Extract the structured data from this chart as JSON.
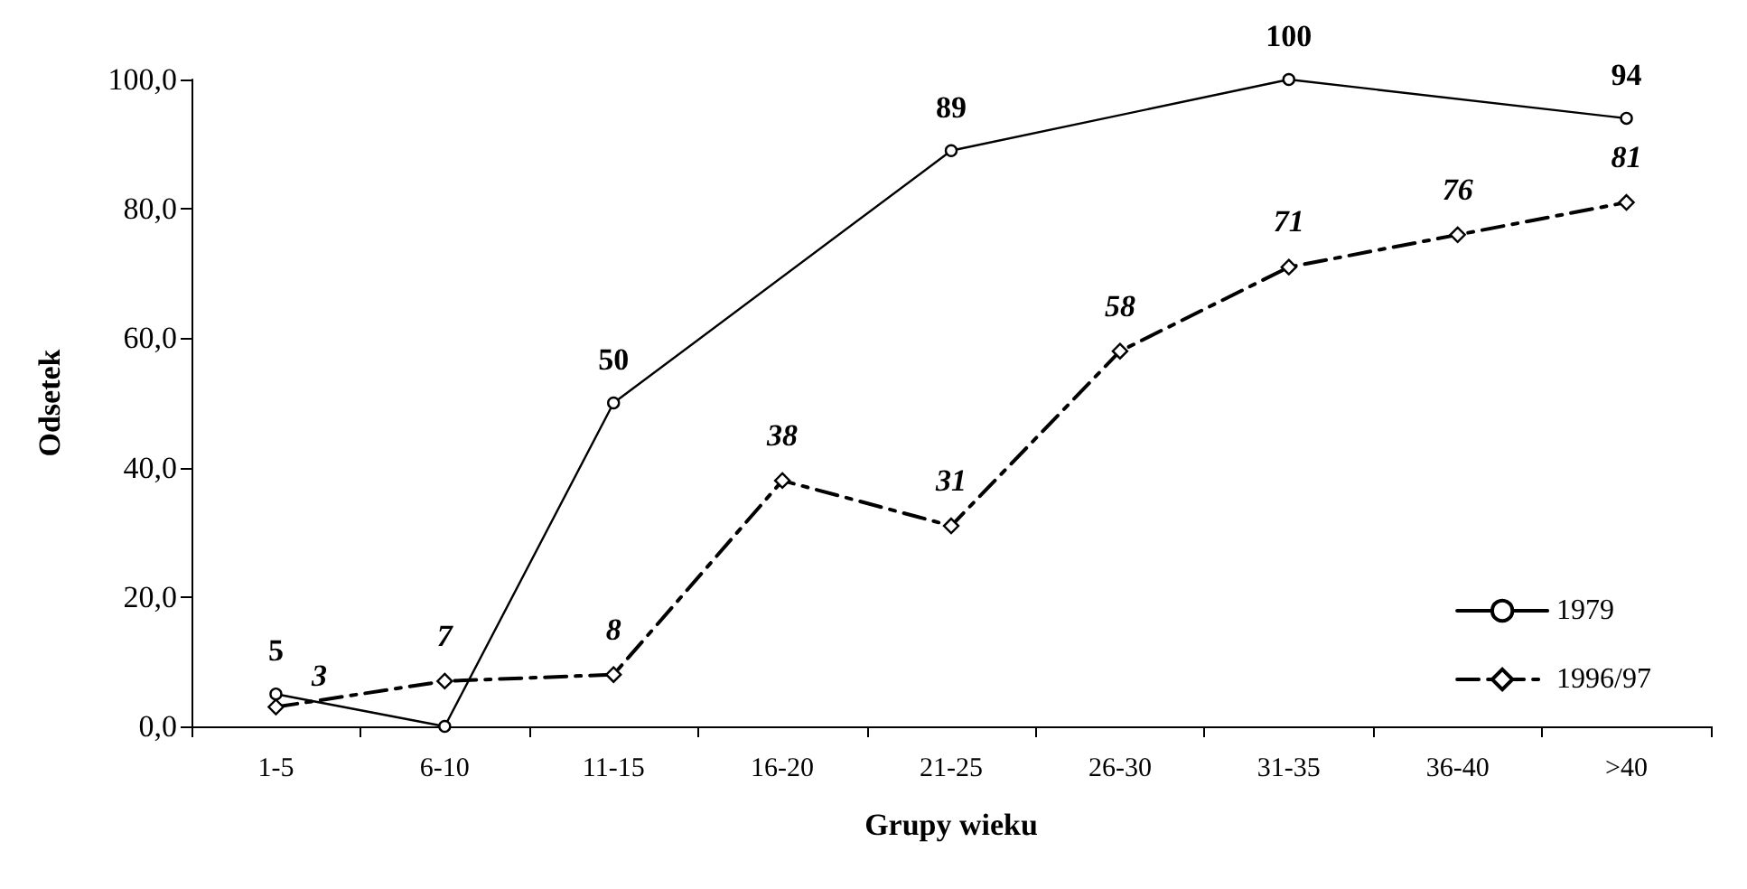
{
  "chart_data": {
    "type": "line",
    "xlabel": "Grupy wieku",
    "ylabel": "Odsetek",
    "categories": [
      "1-5",
      "6-10",
      "11-15",
      "16-20",
      "21-25",
      "26-30",
      "31-35",
      "36-40",
      ">40"
    ],
    "series": [
      {
        "name": "1979",
        "color": "#000000",
        "marker": "circle",
        "line_style": "solid",
        "values": [
          5,
          0,
          50,
          null,
          89,
          null,
          100,
          null,
          94
        ],
        "value_labels": [
          "5",
          null,
          "50",
          null,
          "89",
          null,
          "100",
          null,
          "94"
        ]
      },
      {
        "name": "1996/97",
        "color": "#000000",
        "marker": "diamond",
        "line_style": "dashed",
        "values": [
          3,
          7,
          8,
          38,
          31,
          58,
          71,
          76,
          81
        ],
        "value_labels": [
          "3",
          "7",
          "8",
          "38",
          "31",
          "58",
          "71",
          "76",
          "81"
        ]
      }
    ],
    "ylim": [
      0,
      100
    ],
    "yticks": [
      {
        "value": 0,
        "label": "0,0"
      },
      {
        "value": 20,
        "label": "20,0"
      },
      {
        "value": 40,
        "label": "40,0"
      },
      {
        "value": 60,
        "label": "60,0"
      },
      {
        "value": 80,
        "label": "80,0"
      },
      {
        "value": 100,
        "label": "100,0"
      }
    ],
    "grid": false,
    "legend": "bottom right"
  }
}
